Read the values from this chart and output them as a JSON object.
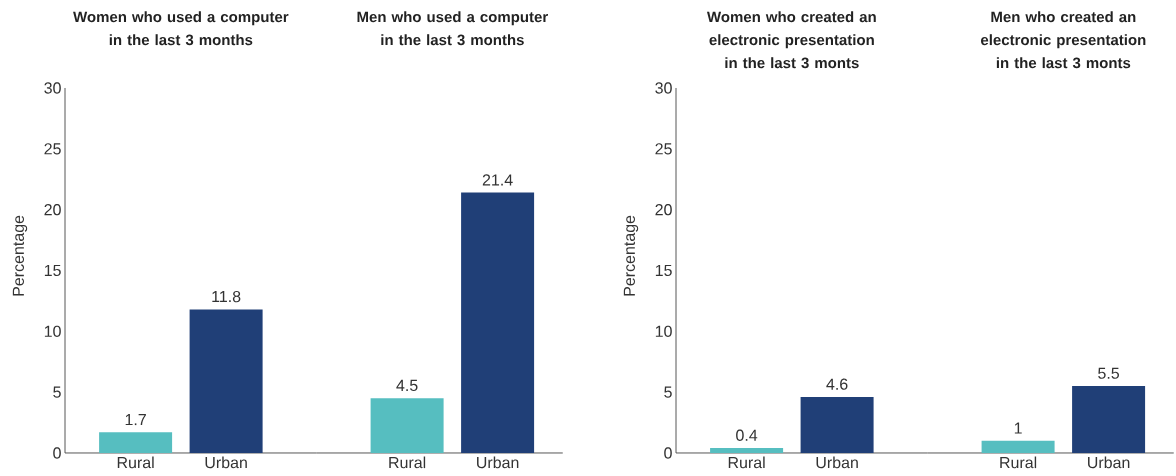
{
  "chart_data": [
    {
      "type": "bar",
      "title": "Women who used a computer in the last 3 months",
      "ylabel": "Percentage",
      "categories": [
        "Rural",
        "Urban"
      ],
      "values": [
        1.7,
        11.8
      ],
      "colors": [
        "#56bec0",
        "#203f77"
      ],
      "ylim": [
        0,
        30
      ],
      "yticks": [
        0,
        5,
        10,
        15,
        20,
        25,
        30
      ],
      "data_labels": true
    },
    {
      "type": "bar",
      "title": "Men who used a computer in the last 3 months",
      "categories": [
        "Rural",
        "Urban"
      ],
      "values": [
        4.5,
        21.4
      ],
      "colors": [
        "#56bec0",
        "#203f77"
      ],
      "ylim": [
        0,
        30
      ],
      "tick_labels": "x",
      "data_labels": true
    },
    {
      "type": "bar",
      "title": "Women who created an electronic presentation in the last 3 monts",
      "ylabel": "Percentage",
      "categories": [
        "Rural",
        "Urban"
      ],
      "values": [
        0.4,
        4.6
      ],
      "colors": [
        "#56bec0",
        "#203f77"
      ],
      "ylim": [
        0,
        30
      ],
      "yticks": [
        0,
        5,
        10,
        15,
        20,
        25,
        30
      ],
      "data_labels": true
    },
    {
      "type": "bar",
      "title": "Men who created an electronic presentation in the last 3 monts",
      "categories": [
        "Rural",
        "Urban"
      ],
      "values": [
        1,
        5.5
      ],
      "colors": [
        "#56bec0",
        "#203f77"
      ],
      "ylim": [
        0,
        30
      ],
      "tick_labels": "x",
      "data_labels": true
    }
  ]
}
